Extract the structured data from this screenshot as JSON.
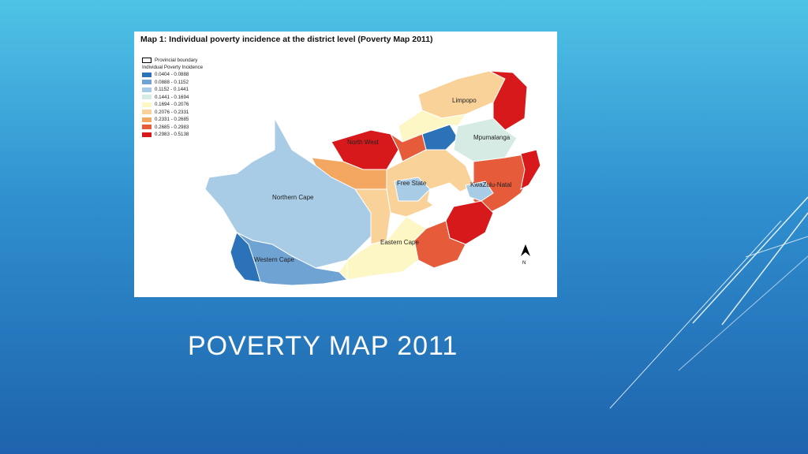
{
  "slide": {
    "title": "POVERTY MAP 2011"
  },
  "map": {
    "title": "Map 1: Individual poverty incidence at the district level (Poverty Map 2011)",
    "legend": {
      "boundary_label": "Provincial boundary",
      "heading": "Individual Poverty Incidence",
      "classes": [
        {
          "range": "0.0404 - 0.0888",
          "color": "#2b72b8"
        },
        {
          "range": "0.0888 - 0.1152",
          "color": "#6fa3d4"
        },
        {
          "range": "0.1152 - 0.1441",
          "color": "#a9cce6"
        },
        {
          "range": "0.1441 - 0.1694",
          "color": "#d6ebe4"
        },
        {
          "range": "0.1694 - 0.2076",
          "color": "#fcf7c4"
        },
        {
          "range": "0.2076 - 0.2331",
          "color": "#f9d29a"
        },
        {
          "range": "0.2331 - 0.2685",
          "color": "#f4a760"
        },
        {
          "range": "0.2685 - 0.2983",
          "color": "#e65c3b"
        },
        {
          "range": "0.2983 - 0.5138",
          "color": "#d7191c"
        }
      ]
    },
    "province_labels": {
      "limpopo": "Limpopo",
      "north_west": "North West",
      "mpumalanga": "Mpumalanga",
      "free_state": "Free State",
      "kwazulu_natal": "KwaZulu-Natal",
      "northern_cape": "Northern Cape",
      "eastern_cape": "Eastern Cape",
      "western_cape": "Western Cape"
    },
    "north_arrow_label": "N"
  }
}
